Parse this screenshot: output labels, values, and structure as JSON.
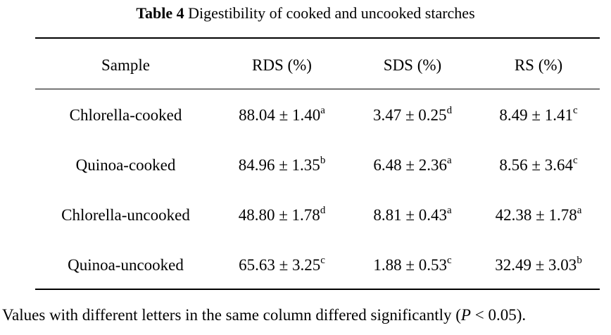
{
  "caption": {
    "label": "Table 4",
    "title": " Digestibility of cooked and uncooked starches"
  },
  "headers": [
    "Sample",
    "RDS (%)",
    "SDS (%)",
    "RS (%)"
  ],
  "rows": [
    {
      "sample": "Chlorella-cooked",
      "rds": {
        "value": "88.04 ± 1.40",
        "sup": "a"
      },
      "sds": {
        "value": "3.47 ± 0.25",
        "sup": "d"
      },
      "rs": {
        "value": "8.49 ± 1.41",
        "sup": "c"
      }
    },
    {
      "sample": "Quinoa-cooked",
      "rds": {
        "value": "84.96 ± 1.35",
        "sup": "b"
      },
      "sds": {
        "value": "6.48 ± 2.36",
        "sup": "a"
      },
      "rs": {
        "value": "8.56 ± 3.64",
        "sup": "c"
      }
    },
    {
      "sample": "Chlorella-uncooked",
      "rds": {
        "value": "48.80 ± 1.78",
        "sup": "d"
      },
      "sds": {
        "value": "8.81 ± 0.43",
        "sup": "a"
      },
      "rs": {
        "value": "42.38 ± 1.78",
        "sup": "a"
      }
    },
    {
      "sample": "Quinoa-uncooked",
      "rds": {
        "value": "65.63 ± 3.25",
        "sup": "c"
      },
      "sds": {
        "value": "1.88 ± 0.53",
        "sup": "c"
      },
      "rs": {
        "value": "32.49 ± 3.03",
        "sup": "b"
      }
    }
  ],
  "footnote": {
    "before": "Values with different letters in the same column differed significantly (",
    "italic": "P",
    "after": " < 0.05)."
  }
}
